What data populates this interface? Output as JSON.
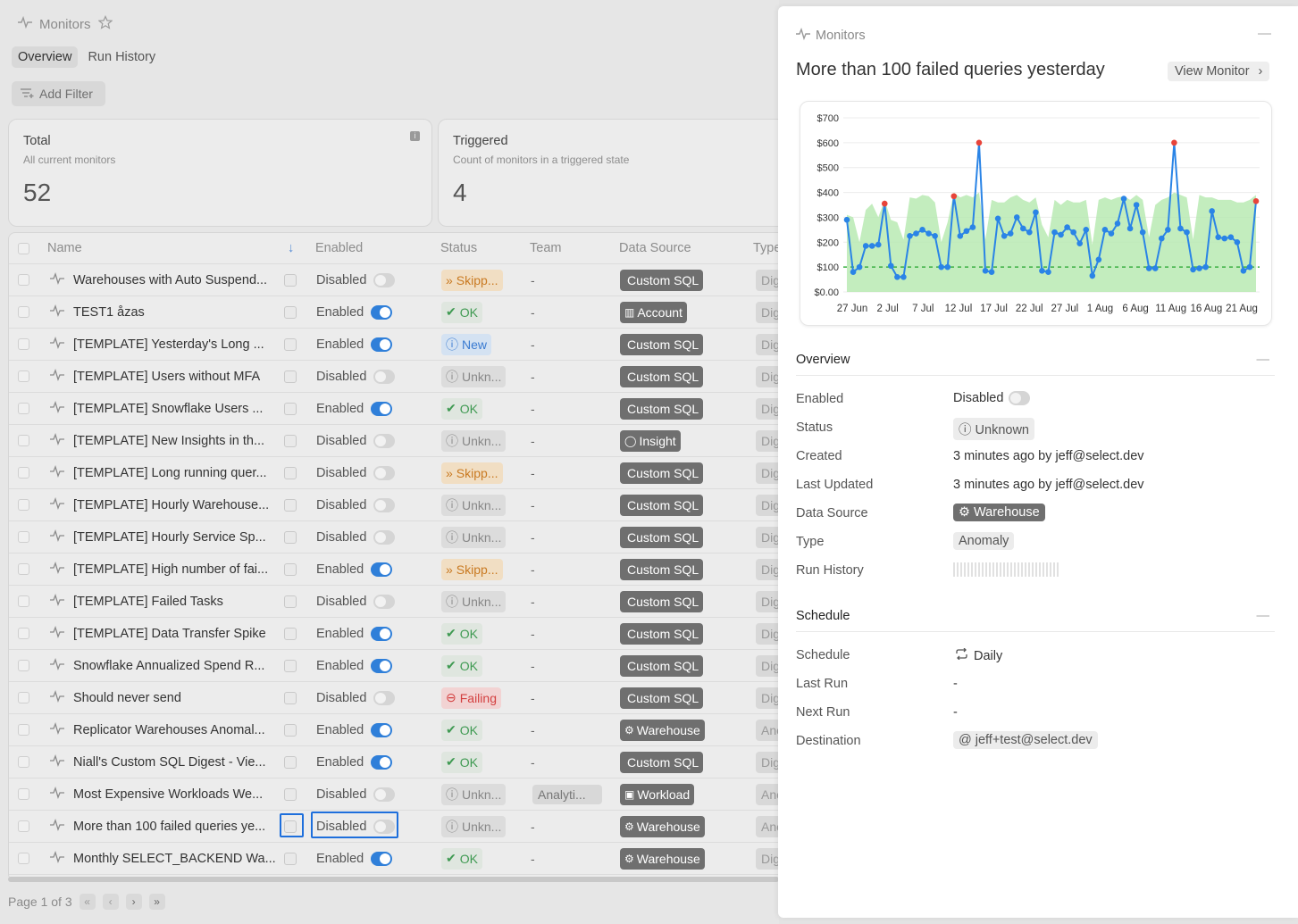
{
  "topbar": {
    "title": "Monitors"
  },
  "tabs": [
    "Overview",
    "Run History"
  ],
  "filter": {
    "label": "Add Filter"
  },
  "cards": [
    {
      "title": "Total",
      "subtitle": "All current monitors",
      "value": "52"
    },
    {
      "title": "Triggered",
      "subtitle": "Count of monitors in a triggered state",
      "value": "4"
    }
  ],
  "table": {
    "headers": {
      "name": "Name",
      "enabled": "Enabled",
      "status": "Status",
      "team": "Team",
      "datasource": "Data Source",
      "type": "Type"
    },
    "rows": [
      {
        "name": "Warehouses with Auto Suspend...",
        "enabled": "Disabled",
        "on": false,
        "status": "Skipp...",
        "sclass": "skip",
        "team": "-",
        "ds": "Custom SQL",
        "type": "Dig"
      },
      {
        "name": "TEST1 åzas",
        "enabled": "Enabled",
        "on": true,
        "status": "OK",
        "sclass": "ok",
        "team": "-",
        "ds": "Account",
        "type": "Dig"
      },
      {
        "name": "[TEMPLATE] Yesterday's Long ...",
        "enabled": "Enabled",
        "on": true,
        "status": "New",
        "sclass": "new",
        "team": "-",
        "ds": "Custom SQL",
        "type": "Dig"
      },
      {
        "name": "[TEMPLATE] Users without MFA",
        "enabled": "Disabled",
        "on": false,
        "status": "Unkn...",
        "sclass": "unk",
        "team": "-",
        "ds": "Custom SQL",
        "type": "Dig"
      },
      {
        "name": "[TEMPLATE] Snowflake Users ...",
        "enabled": "Enabled",
        "on": true,
        "status": "OK",
        "sclass": "ok",
        "team": "-",
        "ds": "Custom SQL",
        "type": "Dig"
      },
      {
        "name": "[TEMPLATE] New Insights in th...",
        "enabled": "Disabled",
        "on": false,
        "status": "Unkn...",
        "sclass": "unk",
        "team": "-",
        "ds": "Insight",
        "type": "Dig"
      },
      {
        "name": "[TEMPLATE] Long running quer...",
        "enabled": "Disabled",
        "on": false,
        "status": "Skipp...",
        "sclass": "skip",
        "team": "-",
        "ds": "Custom SQL",
        "type": "Dig"
      },
      {
        "name": "[TEMPLATE] Hourly Warehouse...",
        "enabled": "Disabled",
        "on": false,
        "status": "Unkn...",
        "sclass": "unk",
        "team": "-",
        "ds": "Custom SQL",
        "type": "Dig"
      },
      {
        "name": "[TEMPLATE] Hourly Service Sp...",
        "enabled": "Disabled",
        "on": false,
        "status": "Unkn...",
        "sclass": "unk",
        "team": "-",
        "ds": "Custom SQL",
        "type": "Dig"
      },
      {
        "name": "[TEMPLATE] High number of fai...",
        "enabled": "Enabled",
        "on": true,
        "status": "Skipp...",
        "sclass": "skip",
        "team": "-",
        "ds": "Custom SQL",
        "type": "Dig"
      },
      {
        "name": "[TEMPLATE] Failed Tasks",
        "enabled": "Disabled",
        "on": false,
        "status": "Unkn...",
        "sclass": "unk",
        "team": "-",
        "ds": "Custom SQL",
        "type": "Dig"
      },
      {
        "name": "[TEMPLATE] Data Transfer Spike",
        "enabled": "Enabled",
        "on": true,
        "status": "OK",
        "sclass": "ok",
        "team": "-",
        "ds": "Custom SQL",
        "type": "Dig"
      },
      {
        "name": "Snowflake Annualized Spend R...",
        "enabled": "Enabled",
        "on": true,
        "status": "OK",
        "sclass": "ok",
        "team": "-",
        "ds": "Custom SQL",
        "type": "Dig"
      },
      {
        "name": "Should never send",
        "enabled": "Disabled",
        "on": false,
        "status": "Failing",
        "sclass": "fail",
        "team": "-",
        "ds": "Custom SQL",
        "type": "Dig"
      },
      {
        "name": "Replicator Warehouses Anomal...",
        "enabled": "Enabled",
        "on": true,
        "status": "OK",
        "sclass": "ok",
        "team": "-",
        "ds": "Warehouse",
        "type": "Ano"
      },
      {
        "name": "Niall's Custom SQL Digest - Vie...",
        "enabled": "Enabled",
        "on": true,
        "status": "OK",
        "sclass": "ok",
        "team": "-",
        "ds": "Custom SQL",
        "type": "Dig"
      },
      {
        "name": "Most Expensive Workloads We...",
        "enabled": "Disabled",
        "on": false,
        "status": "Unkn...",
        "sclass": "unk",
        "team": "Analyti...",
        "ds": "Workload",
        "type": "Ano"
      },
      {
        "name": "More than 100 failed queries ye...",
        "enabled": "Disabled",
        "on": false,
        "status": "Unkn...",
        "sclass": "unk",
        "team": "-",
        "ds": "Warehouse",
        "type": "Ano"
      },
      {
        "name": "Monthly SELECT_BACKEND Wa...",
        "enabled": "Enabled",
        "on": true,
        "status": "OK",
        "sclass": "ok",
        "team": "-",
        "ds": "Warehouse",
        "type": "Dig"
      }
    ]
  },
  "pager": {
    "text": "Page 1 of 3"
  },
  "panel": {
    "crumb": "Monitors",
    "title": "More than 100 failed queries yesterday",
    "view_label": "View Monitor",
    "overview": {
      "heading": "Overview",
      "enabled_label": "Enabled",
      "enabled_value": "Disabled",
      "status_label": "Status",
      "status_value": "Unknown",
      "created_label": "Created",
      "created_value": "3 minutes ago by jeff@select.dev",
      "updated_label": "Last Updated",
      "updated_value": "3 minutes ago by jeff@select.dev",
      "ds_label": "Data Source",
      "ds_value": "Warehouse",
      "type_label": "Type",
      "type_value": "Anomaly",
      "history_label": "Run History"
    },
    "schedule": {
      "heading": "Schedule",
      "schedule_label": "Schedule",
      "schedule_value": "Daily",
      "last_label": "Last Run",
      "last_value": "-",
      "next_label": "Next Run",
      "next_value": "-",
      "dest_label": "Destination",
      "dest_value": "jeff+test@select.dev"
    }
  },
  "chart_data": {
    "type": "line",
    "y_ticks": [
      "$0.00",
      "$100",
      "$200",
      "$300",
      "$400",
      "$500",
      "$600",
      "$700"
    ],
    "ylim": [
      0,
      700
    ],
    "x_ticks": [
      "27 Jun",
      "2 Jul",
      "7 Jul",
      "12 Jul",
      "17 Jul",
      "22 Jul",
      "27 Jul",
      "1 Aug",
      "6 Aug",
      "11 Aug",
      "16 Aug",
      "21 Aug"
    ],
    "threshold": 100,
    "series": [
      {
        "values": [
          290,
          80,
          100,
          185,
          185,
          190,
          355,
          105,
          60,
          60,
          225,
          235,
          250,
          235,
          225,
          100,
          100,
          385,
          225,
          245,
          260,
          600,
          85,
          80,
          295,
          225,
          235,
          300,
          255,
          240,
          320,
          85,
          80,
          240,
          230,
          260,
          240,
          195,
          250,
          65,
          130,
          250,
          235,
          275,
          375,
          255,
          350,
          240,
          95,
          95,
          215,
          250,
          600,
          255,
          240,
          90,
          95,
          100,
          325,
          220,
          215,
          220,
          200,
          85,
          100,
          365
        ],
        "anomalies": [
          6,
          17,
          21,
          52,
          65
        ],
        "band_upper": [
          310,
          300,
          200,
          330,
          355,
          300,
          370,
          290,
          280,
          210,
          380,
          375,
          390,
          385,
          360,
          200,
          280,
          400,
          380,
          390,
          380,
          400,
          210,
          370,
          360,
          360,
          380,
          390,
          370,
          360,
          380,
          270,
          220,
          370,
          350,
          370,
          360,
          360,
          370,
          190,
          370,
          380,
          370,
          380,
          385,
          370,
          390,
          370,
          220,
          350,
          370,
          380,
          400,
          390,
          380,
          210,
          390,
          380,
          380,
          370,
          370,
          370,
          360,
          360,
          370,
          390
        ]
      }
    ]
  }
}
